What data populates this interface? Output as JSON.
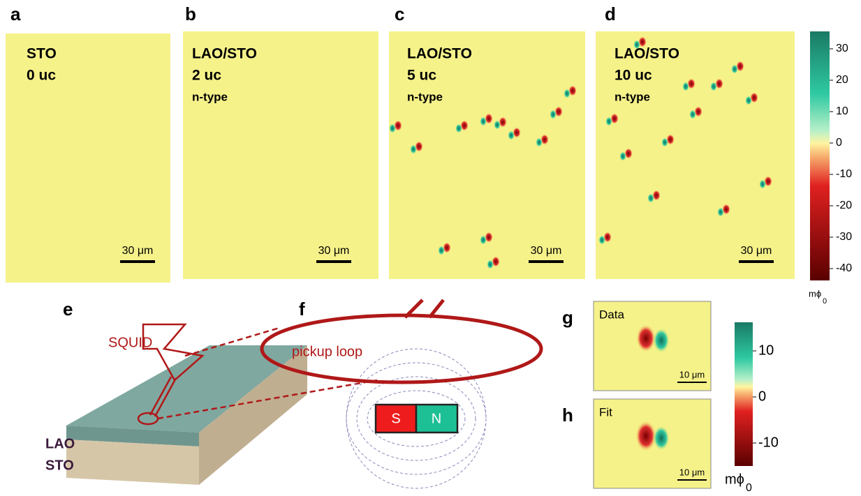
{
  "maps": [
    {
      "label": "a",
      "lines": [
        "STO",
        "0 uc"
      ],
      "scale_bar": "30 μm"
    },
    {
      "label": "b",
      "lines": [
        "LAO/STO",
        "2 uc",
        "n-type"
      ],
      "scale_bar": "30 μm"
    },
    {
      "label": "c",
      "lines": [
        "LAO/STO",
        "5 uc",
        "n-type"
      ],
      "scale_bar": "30 μm"
    },
    {
      "label": "d",
      "lines": [
        "LAO/STO",
        "10 uc",
        "n-type"
      ],
      "scale_bar": "30 μm"
    }
  ],
  "colorbar": {
    "ticks": [
      30,
      20,
      10,
      0,
      -10,
      -20,
      -30,
      -40
    ],
    "unit": "mϕ",
    "unit_subscript": "0"
  },
  "schematic": {
    "label_e": "e",
    "label_f": "f",
    "squid": "SQUID",
    "pickup": "pickup loop",
    "layer_top": "LAO",
    "layer_bottom": "STO",
    "south": "S",
    "north": "N"
  },
  "insets": [
    {
      "label": "g",
      "title": "Data",
      "scale_bar": "10 μm"
    },
    {
      "label": "h",
      "title": "Fit",
      "scale_bar": "10 μm"
    }
  ],
  "inset_colorbar": {
    "ticks": [
      10,
      0,
      -10
    ],
    "unit": "mϕ",
    "unit_subscript": "0"
  }
}
